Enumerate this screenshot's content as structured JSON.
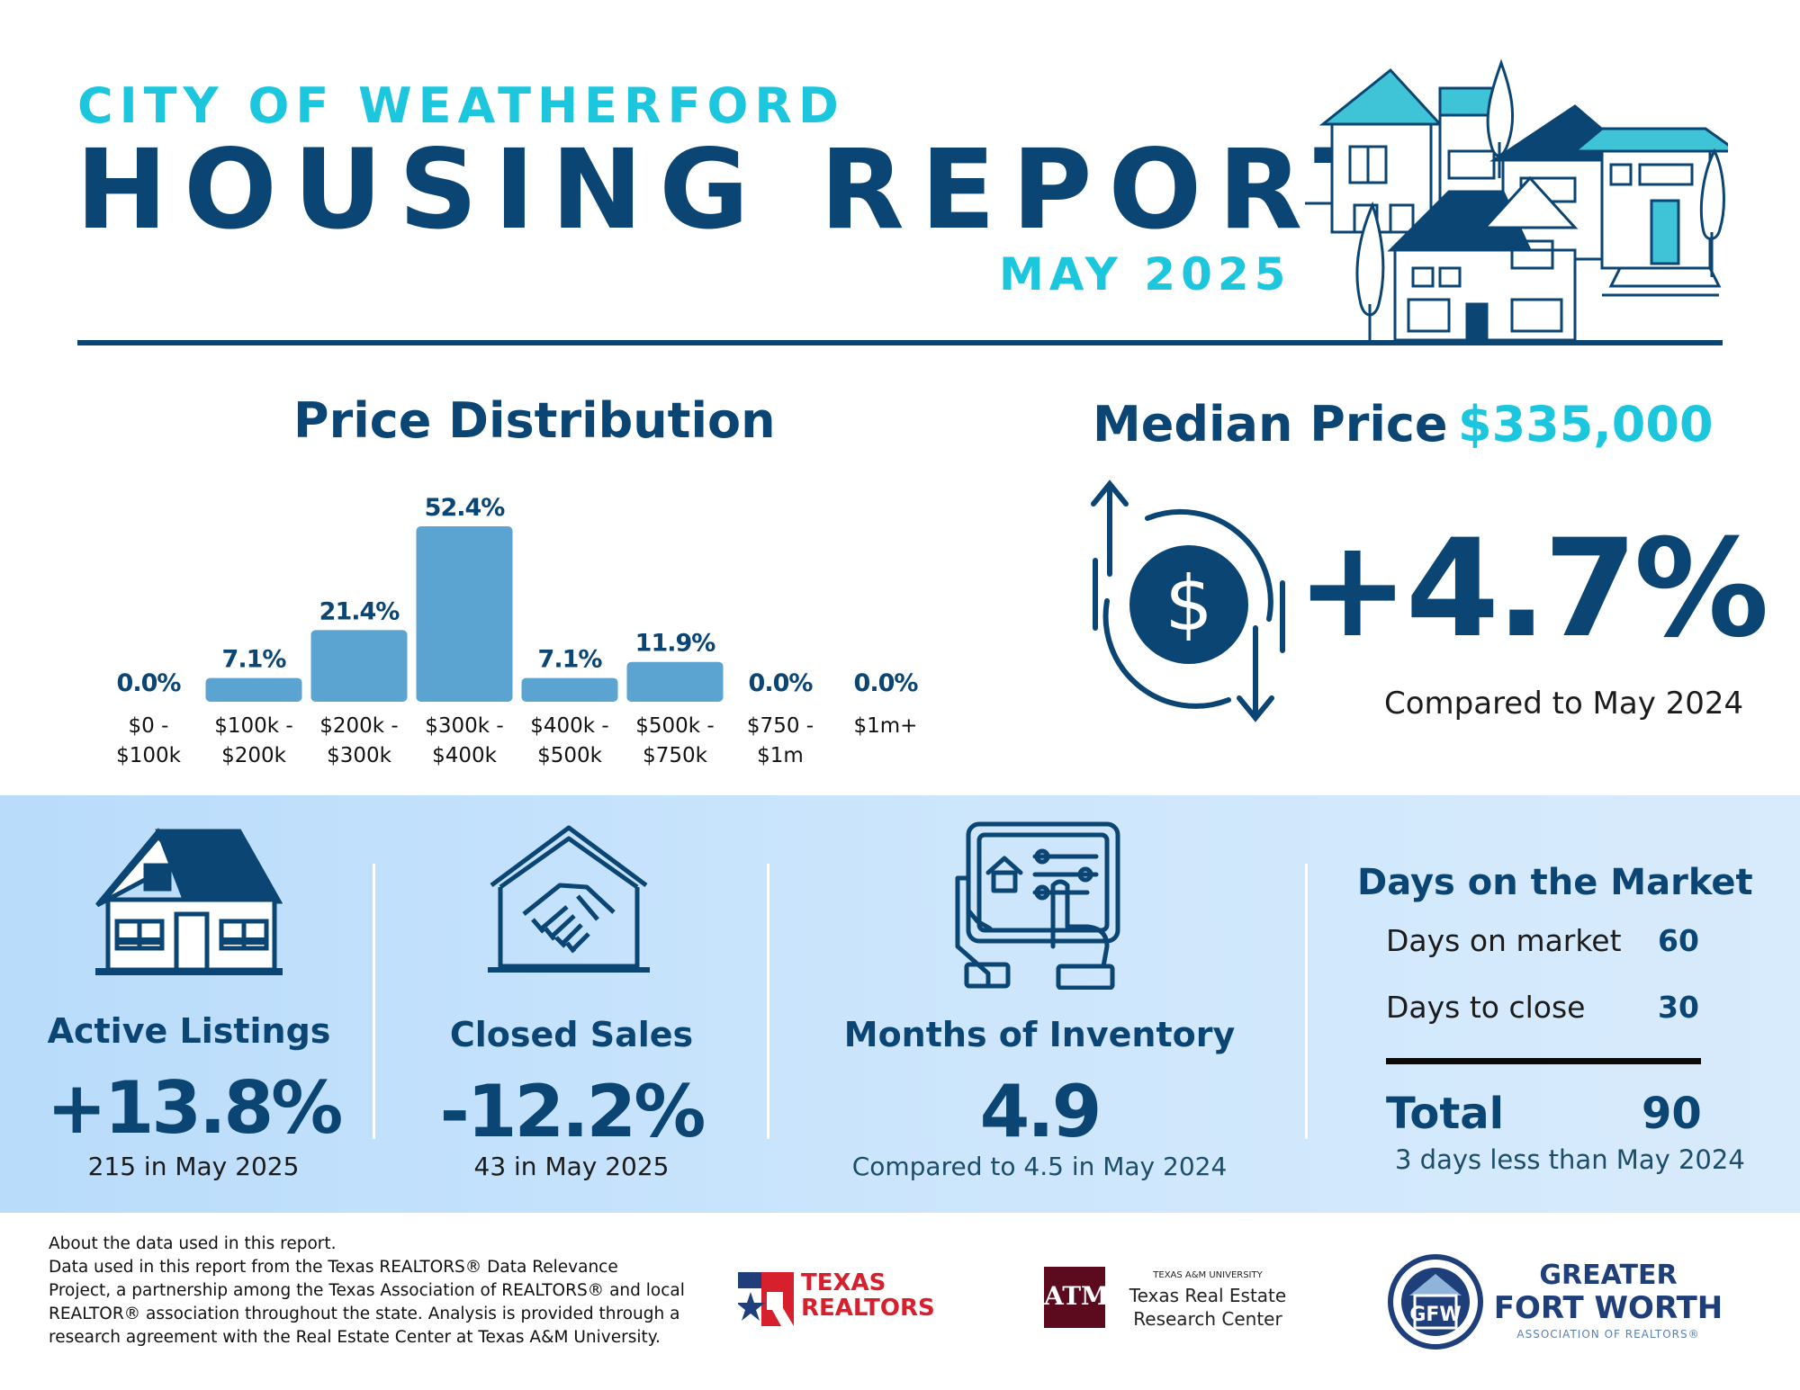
{
  "header": {
    "city": "CITY OF WEATHERFORD",
    "title": "HOUSING REPORT",
    "month": "MAY 2025"
  },
  "price_distribution": {
    "title": "Price Distribution"
  },
  "chart_data": {
    "type": "bar",
    "title": "Price Distribution",
    "categories": [
      [
        "$0 -",
        "$100k"
      ],
      [
        "$100k -",
        "$200k"
      ],
      [
        "$200k -",
        "$300k"
      ],
      [
        "$300k -",
        "$400k"
      ],
      [
        "$400k -",
        "$500k"
      ],
      [
        "$500k -",
        "$750k"
      ],
      [
        "$750 -",
        "$1m"
      ],
      [
        "$1m+"
      ]
    ],
    "values": [
      0.0,
      7.1,
      21.4,
      52.4,
      7.1,
      11.9,
      0.0,
      0.0
    ],
    "value_labels": [
      "0.0%",
      "7.1%",
      "21.4%",
      "52.4%",
      "7.1%",
      "11.9%",
      "0.0%",
      "0.0%"
    ],
    "ylim": [
      0,
      52.4
    ],
    "grid": false,
    "bar_color": "#5ba3d0"
  },
  "median": {
    "label": "Median Price",
    "value": "$335,000",
    "change": "+4.7%",
    "compare": "Compared to May 2024"
  },
  "stats": {
    "active_listings": {
      "title": "Active Listings",
      "change": "+13.8%",
      "sub": "215 in May 2025"
    },
    "closed_sales": {
      "title": "Closed Sales",
      "change": "-12.2%",
      "sub": "43 in May 2025"
    },
    "months_inventory": {
      "title": "Months of Inventory",
      "value": "4.9",
      "sub": "Compared to 4.5 in May 2024"
    },
    "days_on_market": {
      "title": "Days on the Market",
      "rows": [
        {
          "label": "Days on market",
          "value": "60"
        },
        {
          "label": "Days to close",
          "value": "30"
        }
      ],
      "total_label": "Total",
      "total_value": "90",
      "note": "3 days less than May 2024"
    }
  },
  "footer": {
    "lines": [
      "About the data used in this report.",
      "Data used in this report from the Texas REALTORS® Data Relevance",
      "Project, a partnership among the Texas Association of REALTORS® and local",
      "REALTOR® association throughout the state. Analysis is provided through a",
      "research agreement with the Real Estate Center at Texas A&M University."
    ],
    "logos": {
      "texas_realtors": [
        "TEXAS",
        "REALTORS"
      ],
      "tamu": {
        "small": "TEXAS A&M UNIVERSITY",
        "line1": "Texas Real Estate",
        "line2": "Research Center",
        "mark": "ATM"
      },
      "gfw": {
        "line1": "GREATER",
        "line2": "FORT WORTH",
        "line3": "ASSOCIATION OF REALTORS®",
        "mark": "GFW"
      }
    }
  },
  "colors": {
    "navy": "#0b4573",
    "cyan": "#1cc6dd",
    "bar": "#5ba3d0",
    "band": "#c6e2fb"
  }
}
